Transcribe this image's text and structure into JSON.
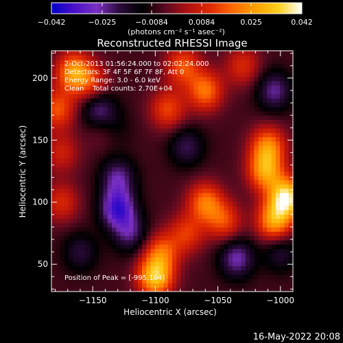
{
  "chart_data": {
    "type": "heatmap",
    "title": "Reconstructed RHESSI Image",
    "xlabel": "Heliocentric X (arcsec)",
    "ylabel": "Heliocentric Y (arcsec)",
    "xlim": [
      -1183,
      -990
    ],
    "ylim": [
      28,
      222
    ],
    "x_ticks": [
      -1150,
      -1100,
      -1050,
      -1000
    ],
    "x_tick_labels": [
      "−1150",
      "−1100",
      "−1050",
      "−1000"
    ],
    "y_ticks": [
      50,
      100,
      150,
      200
    ],
    "y_tick_labels": [
      "50",
      "100",
      "150",
      "200"
    ],
    "colorbar": {
      "range": [
        -0.042,
        0.042
      ],
      "ticks": [
        -0.042,
        -0.025,
        -0.0084,
        0.0084,
        0.025,
        0.042
      ],
      "tick_labels": [
        "−0.042",
        "−0.025",
        "−0.0084",
        "0.0084",
        "0.025",
        "0.042"
      ],
      "units_label": "(photons cm⁻² s⁻¹ asec⁻²)",
      "colormap": [
        "#0000c8",
        "#4a10c8",
        "#7a30c0",
        "#2a0a3a",
        "#000000",
        "#5a0a20",
        "#b01010",
        "#e02a00",
        "#ff6a00",
        "#ffa000",
        "#ffd020",
        "#ffffff"
      ]
    },
    "annotations": [
      "2-Oct-2013 01:56:24.000 to 02:02:24.000",
      "Detectors: 3F 4F 5F 6F 7F 8F, Att 0",
      "Energy Range: 3.0 - 6.0 keV",
      "Clean    Total counts: 2.70E+04",
      "Position of Peak = [-995,104]"
    ],
    "peak_position": [
      -995,
      104
    ],
    "peak_value": 0.042,
    "sources": [
      {
        "x": -1165,
        "y": 205,
        "value": 0.03
      },
      {
        "x": -1150,
        "y": 195,
        "value": 0.014
      },
      {
        "x": -1178,
        "y": 175,
        "value": 0.02
      },
      {
        "x": -1175,
        "y": 140,
        "value": 0.012
      },
      {
        "x": -1060,
        "y": 190,
        "value": 0.024
      },
      {
        "x": -1090,
        "y": 175,
        "value": 0.018
      },
      {
        "x": -1078,
        "y": 210,
        "value": 0.02
      },
      {
        "x": -1030,
        "y": 210,
        "value": 0.014
      },
      {
        "x": -1010,
        "y": 145,
        "value": 0.026
      },
      {
        "x": -995,
        "y": 104,
        "value": 0.042
      },
      {
        "x": -1005,
        "y": 85,
        "value": 0.03
      },
      {
        "x": -1012,
        "y": 125,
        "value": 0.028
      },
      {
        "x": -1060,
        "y": 100,
        "value": 0.024
      },
      {
        "x": -1045,
        "y": 85,
        "value": 0.018
      },
      {
        "x": -1075,
        "y": 75,
        "value": 0.016
      },
      {
        "x": -1100,
        "y": 40,
        "value": 0.036
      },
      {
        "x": -1095,
        "y": 60,
        "value": 0.02
      },
      {
        "x": -1175,
        "y": 100,
        "value": 0.014
      },
      {
        "x": -1140,
        "y": 160,
        "value": 0.012
      },
      {
        "x": -1135,
        "y": 160,
        "value": -0.014
      },
      {
        "x": -1145,
        "y": 175,
        "value": -0.022
      },
      {
        "x": -1130,
        "y": 120,
        "value": -0.02
      },
      {
        "x": -1130,
        "y": 95,
        "value": -0.03
      },
      {
        "x": -1120,
        "y": 75,
        "value": -0.018
      },
      {
        "x": -1160,
        "y": 60,
        "value": -0.014
      },
      {
        "x": -1075,
        "y": 145,
        "value": -0.016
      },
      {
        "x": -1035,
        "y": 55,
        "value": -0.022
      },
      {
        "x": -1000,
        "y": 60,
        "value": -0.014
      },
      {
        "x": -1005,
        "y": 190,
        "value": -0.02
      }
    ]
  },
  "timestamp": "16-May-2022 20:08"
}
